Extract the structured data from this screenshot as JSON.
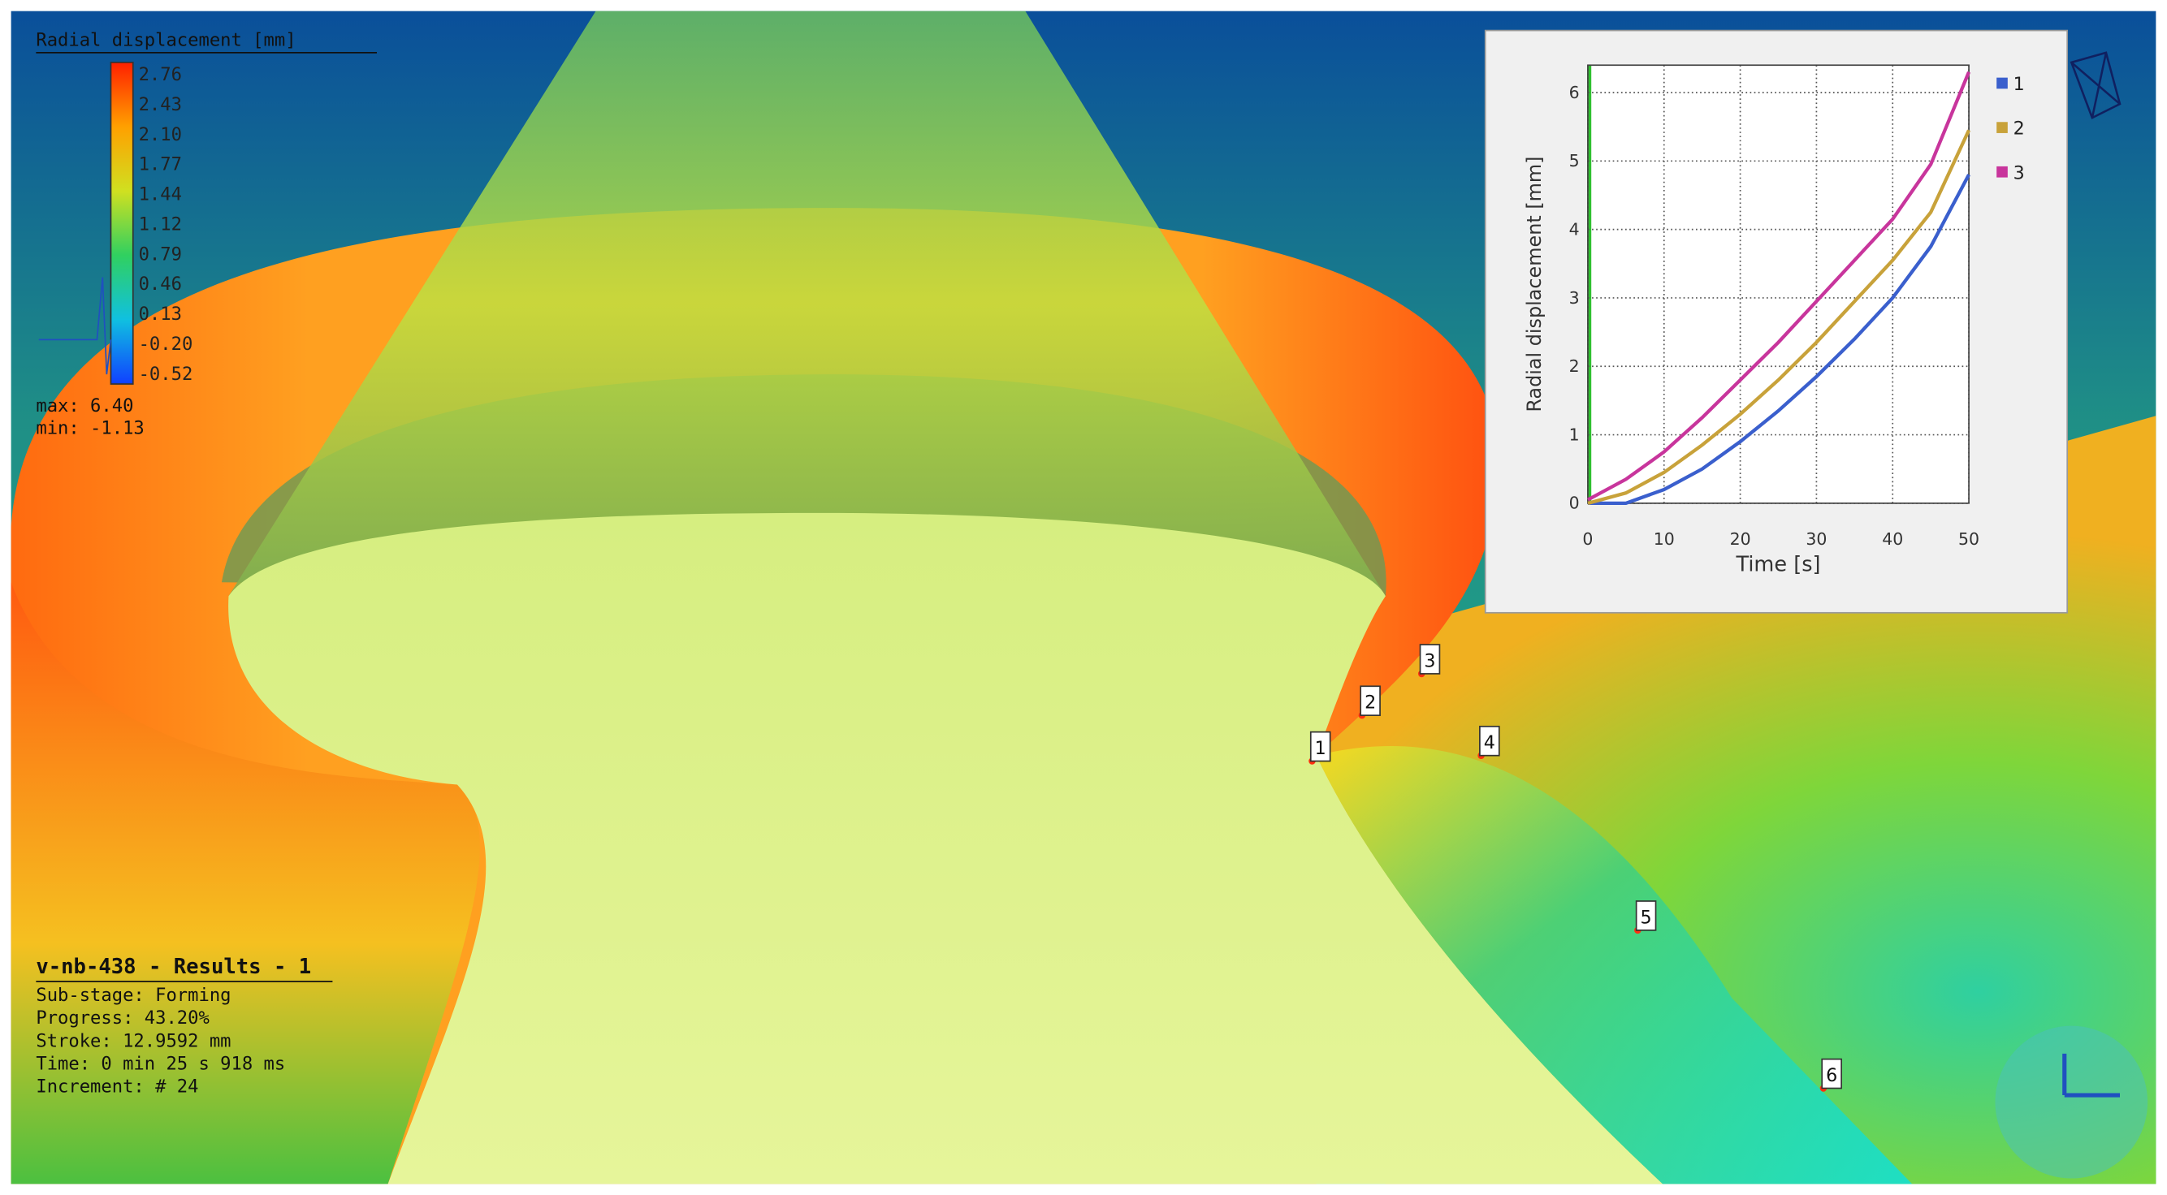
{
  "legend": {
    "title": "Radial displacement [mm]",
    "labels": [
      "2.76",
      "2.43",
      "2.10",
      "1.77",
      "1.44",
      "1.12",
      "0.79",
      "0.46",
      "0.13",
      "-0.20",
      "-0.52"
    ],
    "max": "max: 6.40",
    "min": "min: -1.13"
  },
  "info": {
    "title": "v-nb-438 - Results - 1",
    "lines": [
      "Sub-stage: Forming",
      "Progress: 43.20%",
      "Stroke: 12.9592 mm",
      "Time: 0 min 25 s 918 ms",
      "Increment: # 24"
    ]
  },
  "points": [
    "1",
    "2",
    "3",
    "4",
    "5",
    "6"
  ],
  "chart_data": {
    "type": "line",
    "x_label": "Time [s]",
    "y_label": "Radial displacement [mm]",
    "x": [
      0,
      5,
      10,
      15,
      20,
      25,
      30,
      35,
      40,
      45,
      50
    ],
    "series": [
      {
        "name": "1",
        "color": "#3a5fcd",
        "values": [
          0,
          0,
          0.2,
          0.5,
          0.9,
          1.35,
          1.85,
          2.4,
          3.0,
          3.75,
          4.8
        ]
      },
      {
        "name": "2",
        "color": "#c8a23a",
        "values": [
          0,
          0.15,
          0.45,
          0.85,
          1.3,
          1.8,
          2.35,
          2.95,
          3.55,
          4.25,
          5.45
        ]
      },
      {
        "name": "3",
        "color": "#c8359c",
        "values": [
          0.05,
          0.35,
          0.75,
          1.25,
          1.8,
          2.35,
          2.95,
          3.55,
          4.15,
          4.95,
          6.3
        ]
      }
    ],
    "xlim": [
      0,
      50
    ],
    "xticks": [
      0,
      10,
      20,
      30,
      40,
      50
    ],
    "ylim": [
      0,
      6.4
    ],
    "yticks": [
      0,
      1,
      2,
      3,
      4,
      5,
      6
    ],
    "grid": true,
    "legend": "right"
  }
}
